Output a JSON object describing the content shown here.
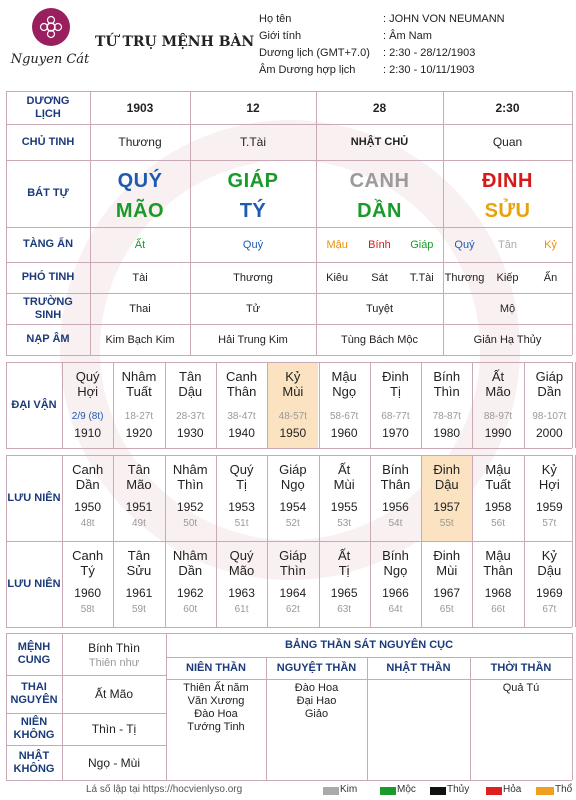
{
  "brand": {
    "name": "Nguyen Cát"
  },
  "title": "TỨ TRỤ MỆNH BÀN",
  "info": [
    {
      "label": "Họ tên",
      "value": ": JOHN VON NEUMANN"
    },
    {
      "label": "Giới tính",
      "value": ": Âm Nam"
    },
    {
      "label": "Dương lịch (GMT+7.0)",
      "value": ": 2:30 - 28/12/1903"
    },
    {
      "label": "Âm Dương hợp lịch",
      "value": ": 2:30 - 10/11/1903"
    }
  ],
  "rows": {
    "duong_lich": "DƯƠNG LỊCH",
    "chu_tinh": "CHỦ TINH",
    "bat_tu": "BÁT TỰ",
    "tang_an": "TÀNG ẨN",
    "pho_tinh": "PHÓ TINH",
    "truong_sinh": "TRƯỜNG SINH",
    "nap_am": "NẠP ÂM"
  },
  "pillars": [
    {
      "duong": "1903",
      "chu": "Thương",
      "can": "QUÝ",
      "chi": "MÃO",
      "can_color": "#1e5bb0",
      "chi_color": "#1a9a2a",
      "tang": [
        {
          "t": "Ất",
          "c": "#1a9a2a"
        }
      ],
      "pho": [
        "Tài"
      ],
      "truong": "Thai",
      "nap": "Kim Bạch Kim"
    },
    {
      "duong": "12",
      "chu": "T.Tài",
      "can": "GIÁP",
      "chi": "TÝ",
      "can_color": "#1a9a2a",
      "chi_color": "#1e5bb0",
      "tang": [
        {
          "t": "Quý",
          "c": "#1e5bb0"
        }
      ],
      "pho": [
        "Thương"
      ],
      "truong": "Tử",
      "nap": "Hải Trung Kim"
    },
    {
      "duong": "28",
      "chu": "NHẬT CHỦ",
      "can": "CANH",
      "chi": "DẦN",
      "can_color": "#9a9a9a",
      "chi_color": "#1a9a2a",
      "tang": [
        {
          "t": "Mậu",
          "c": "#e8900c"
        },
        {
          "t": "Bính",
          "c": "#d61a1a"
        },
        {
          "t": "Giáp",
          "c": "#1a9a2a"
        }
      ],
      "pho": [
        "Kiêu",
        "Sát",
        "T.Tài"
      ],
      "truong": "Tuyệt",
      "nap": "Tùng Bách Mộc"
    },
    {
      "duong": "2:30",
      "chu": "Quan",
      "can": "ĐINH",
      "chi": "SỬU",
      "can_color": "#d61a1a",
      "chi_color": "#e8a20c",
      "tang": [
        {
          "t": "Quý",
          "c": "#1e5bb0"
        },
        {
          "t": "Tân",
          "c": "#aaaaaa"
        },
        {
          "t": "Kỷ",
          "c": "#e8900c"
        }
      ],
      "pho": [
        "Thương",
        "Kiếp",
        "Ấn"
      ],
      "truong": "Mộ",
      "nap": "Giản Hạ Thủy"
    }
  ],
  "dai_van": {
    "label": "ĐẠI VẬN",
    "items": [
      {
        "l1": "Quý",
        "l2": "Hợi",
        "age": "2/9 (8t)",
        "year": "1910",
        "first": true
      },
      {
        "l1": "Nhâm",
        "l2": "Tuất",
        "age": "18-27t",
        "year": "1920"
      },
      {
        "l1": "Tân",
        "l2": "Dậu",
        "age": "28-37t",
        "year": "1930"
      },
      {
        "l1": "Canh",
        "l2": "Thân",
        "age": "38-47t",
        "year": "1940"
      },
      {
        "l1": "Kỷ",
        "l2": "Mùi",
        "age": "48-57t",
        "year": "1950",
        "hl": true
      },
      {
        "l1": "Mậu",
        "l2": "Ngọ",
        "age": "58-67t",
        "year": "1960"
      },
      {
        "l1": "Đinh",
        "l2": "Tị",
        "age": "68-77t",
        "year": "1970"
      },
      {
        "l1": "Bính",
        "l2": "Thìn",
        "age": "78-87t",
        "year": "1980"
      },
      {
        "l1": "Ất",
        "l2": "Mão",
        "age": "88-97t",
        "year": "1990"
      },
      {
        "l1": "Giáp",
        "l2": "Dần",
        "age": "98-107t",
        "year": "2000"
      }
    ]
  },
  "luu_nien": [
    {
      "label": "LƯU NIÊN",
      "items": [
        {
          "l1": "Canh",
          "l2": "Dần",
          "year": "1950",
          "age": "48t"
        },
        {
          "l1": "Tân",
          "l2": "Mão",
          "year": "1951",
          "age": "49t"
        },
        {
          "l1": "Nhâm",
          "l2": "Thìn",
          "year": "1952",
          "age": "50t"
        },
        {
          "l1": "Quý",
          "l2": "Tị",
          "year": "1953",
          "age": "51t"
        },
        {
          "l1": "Giáp",
          "l2": "Ngọ",
          "year": "1954",
          "age": "52t"
        },
        {
          "l1": "Ất",
          "l2": "Mùi",
          "year": "1955",
          "age": "53t"
        },
        {
          "l1": "Bính",
          "l2": "Thân",
          "year": "1956",
          "age": "54t"
        },
        {
          "l1": "Đinh",
          "l2": "Dậu",
          "year": "1957",
          "age": "55t",
          "hl": true
        },
        {
          "l1": "Mậu",
          "l2": "Tuất",
          "year": "1958",
          "age": "56t"
        },
        {
          "l1": "Kỷ",
          "l2": "Hợi",
          "year": "1959",
          "age": "57t"
        }
      ]
    },
    {
      "label": "LƯU NIÊN",
      "items": [
        {
          "l1": "Canh",
          "l2": "Tý",
          "year": "1960",
          "age": "58t"
        },
        {
          "l1": "Tân",
          "l2": "Sửu",
          "year": "1961",
          "age": "59t"
        },
        {
          "l1": "Nhâm",
          "l2": "Dần",
          "year": "1962",
          "age": "60t"
        },
        {
          "l1": "Quý",
          "l2": "Mão",
          "year": "1963",
          "age": "61t"
        },
        {
          "l1": "Giáp",
          "l2": "Thìn",
          "year": "1964",
          "age": "62t"
        },
        {
          "l1": "Ất",
          "l2": "Tị",
          "year": "1965",
          "age": "63t"
        },
        {
          "l1": "Bính",
          "l2": "Ngọ",
          "year": "1966",
          "age": "64t"
        },
        {
          "l1": "Đinh",
          "l2": "Mùi",
          "year": "1967",
          "age": "65t"
        },
        {
          "l1": "Mậu",
          "l2": "Thân",
          "year": "1968",
          "age": "66t"
        },
        {
          "l1": "Kỷ",
          "l2": "Dậu",
          "year": "1969",
          "age": "67t"
        }
      ]
    }
  ],
  "bottom": {
    "menh_cung": {
      "label": "MỆNH CUNG",
      "value": "Bính Thìn",
      "sub": "Thiên như"
    },
    "thai_nguyen": {
      "label": "THAI NGUYÊN",
      "value": "Ất Mão"
    },
    "nien_khong": {
      "label": "NIÊN KHÔNG",
      "value": "Thìn - Tị"
    },
    "nhat_khong": {
      "label": "NHẬT KHÔNG",
      "value": "Ngọ - Mùi"
    }
  },
  "than_sat": {
    "title": "BẢNG THẦN SÁT NGUYÊN CỤC",
    "cols": [
      {
        "header": "NIÊN THẦN",
        "items": [
          "Thiên Ất năm",
          "Văn Xương",
          "Đào Hoa",
          "Tướng Tinh"
        ]
      },
      {
        "header": "NGUYỆT THẦN",
        "items": [
          "Đào Hoa",
          "Đại Hao",
          "Giảo"
        ]
      },
      {
        "header": "NHẬT THẦN",
        "items": []
      },
      {
        "header": "THỜI THẦN",
        "items": [
          "Quả Tú"
        ]
      }
    ]
  },
  "footer": {
    "text": "Lá số lập tại https://hocvienlyso.org",
    "legend": [
      {
        "label": "Kim",
        "color": "#aaaaaa"
      },
      {
        "label": "Mộc",
        "color": "#1a9a2a"
      },
      {
        "label": "Thủy",
        "color": "#111111"
      },
      {
        "label": "Hỏa",
        "color": "#e02020"
      },
      {
        "label": "Thổ",
        "color": "#f0a020"
      }
    ]
  }
}
